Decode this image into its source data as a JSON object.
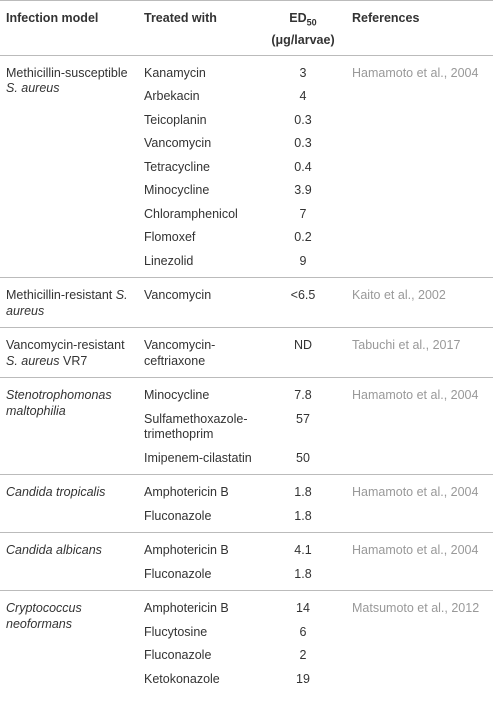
{
  "table": {
    "header": {
      "model": "Infection model",
      "treated": "Treated with",
      "ed": "ED",
      "ed_sub": "50",
      "ed_unit": "(μg/larvae)",
      "refs": "References"
    },
    "groups": [
      {
        "model": [
          {
            "text": "Methicillin-susceptible ",
            "italic": false
          },
          {
            "text": "S. aureus",
            "italic": true
          }
        ],
        "reference": "Hamamoto et al., 2004",
        "rows": [
          {
            "drug": "Kanamycin",
            "value": "3"
          },
          {
            "drug": "Arbekacin",
            "value": "4"
          },
          {
            "drug": "Teicoplanin",
            "value": "0.3"
          },
          {
            "drug": "Vancomycin",
            "value": "0.3"
          },
          {
            "drug": "Tetracycline",
            "value": "0.4"
          },
          {
            "drug": "Minocycline",
            "value": "3.9"
          },
          {
            "drug": "Chloramphenicol",
            "value": "7"
          },
          {
            "drug": "Flomoxef",
            "value": "0.2"
          },
          {
            "drug": "Linezolid",
            "value": "9"
          }
        ]
      },
      {
        "model": [
          {
            "text": "Methicillin-resistant ",
            "italic": false
          },
          {
            "text": "S. aureus",
            "italic": true
          }
        ],
        "reference": "Kaito et al., 2002",
        "rows": [
          {
            "drug": "Vancomycin",
            "value": "<6.5"
          }
        ]
      },
      {
        "model": [
          {
            "text": "Vancomycin-resistant ",
            "italic": false
          },
          {
            "text": "S. aureus",
            "italic": true
          },
          {
            "text": " VR7",
            "italic": false
          }
        ],
        "reference": "Tabuchi et al., 2017",
        "rows": [
          {
            "drug": "Vancomycin-ceftriaxone",
            "value": "ND"
          }
        ]
      },
      {
        "model": [
          {
            "text": "Stenotrophomonas maltophilia",
            "italic": true
          }
        ],
        "reference": "Hamamoto et al., 2004",
        "rows": [
          {
            "drug": "Minocycline",
            "value": "7.8"
          },
          {
            "drug": "Sulfamethoxazole-trimethoprim",
            "value": "57"
          },
          {
            "drug": "Imipenem-cilastatin",
            "value": "50"
          }
        ]
      },
      {
        "model": [
          {
            "text": "Candida tropicalis",
            "italic": true
          }
        ],
        "reference": "Hamamoto et al., 2004",
        "rows": [
          {
            "drug": "Amphotericin B",
            "value": "1.8"
          },
          {
            "drug": "Fluconazole",
            "value": "1.8"
          }
        ]
      },
      {
        "model": [
          {
            "text": "Candida albicans",
            "italic": true
          }
        ],
        "reference": "Hamamoto et al., 2004",
        "rows": [
          {
            "drug": "Amphotericin B",
            "value": "4.1"
          },
          {
            "drug": "Fluconazole",
            "value": "1.8"
          }
        ]
      },
      {
        "model": [
          {
            "text": "Cryptococcus neoformans",
            "italic": true
          }
        ],
        "reference": "Matsumoto et al., 2012",
        "rows": [
          {
            "drug": "Amphotericin B",
            "value": "14"
          },
          {
            "drug": "Flucytosine",
            "value": "6"
          },
          {
            "drug": "Fluconazole",
            "value": "2"
          },
          {
            "drug": "Ketokonazole",
            "value": "19"
          }
        ]
      }
    ]
  }
}
